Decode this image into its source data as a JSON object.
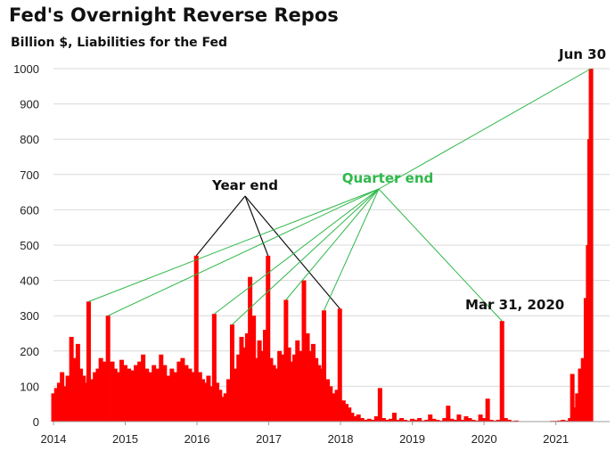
{
  "chart_data": {
    "type": "bar",
    "title": "Fed's Overnight  Reverse Repos",
    "subtitle": "Billion $, Liabilities for the Fed",
    "xlabel": "",
    "ylabel": "",
    "ylim": [
      0,
      1000
    ],
    "xlim": [
      2014.0,
      2021.75
    ],
    "yticks": [
      0,
      100,
      200,
      300,
      400,
      500,
      600,
      700,
      800,
      900,
      1000
    ],
    "xticks": [
      2014,
      2015,
      2016,
      2017,
      2018,
      2019,
      2020,
      2021
    ],
    "grid": true,
    "bar_color": "#ff0000",
    "annotation_colors": {
      "year_end": "#111111",
      "quarter_end": "#2fb84a"
    },
    "series": [
      {
        "values": [
          [
            2014.0,
            80
          ],
          [
            2014.04,
            95
          ],
          [
            2014.08,
            110
          ],
          [
            2014.12,
            140
          ],
          [
            2014.16,
            100
          ],
          [
            2014.2,
            130
          ],
          [
            2014.25,
            240
          ],
          [
            2014.3,
            180
          ],
          [
            2014.34,
            220
          ],
          [
            2014.38,
            150
          ],
          [
            2014.42,
            130
          ],
          [
            2014.46,
            110
          ],
          [
            2014.49,
            340
          ],
          [
            2014.54,
            120
          ],
          [
            2014.58,
            140
          ],
          [
            2014.62,
            150
          ],
          [
            2014.66,
            180
          ],
          [
            2014.7,
            170
          ],
          [
            2014.74,
            160
          ],
          [
            2014.76,
            300
          ],
          [
            2014.82,
            170
          ],
          [
            2014.86,
            150
          ],
          [
            2014.9,
            140
          ],
          [
            2014.95,
            175
          ],
          [
            2015.0,
            160
          ],
          [
            2015.05,
            150
          ],
          [
            2015.1,
            145
          ],
          [
            2015.15,
            160
          ],
          [
            2015.2,
            170
          ],
          [
            2015.25,
            190
          ],
          [
            2015.3,
            150
          ],
          [
            2015.35,
            140
          ],
          [
            2015.4,
            160
          ],
          [
            2015.45,
            150
          ],
          [
            2015.5,
            190
          ],
          [
            2015.55,
            160
          ],
          [
            2015.6,
            130
          ],
          [
            2015.65,
            150
          ],
          [
            2015.7,
            140
          ],
          [
            2015.75,
            170
          ],
          [
            2015.8,
            180
          ],
          [
            2015.85,
            160
          ],
          [
            2015.9,
            150
          ],
          [
            2015.95,
            140
          ],
          [
            2015.99,
            470
          ],
          [
            2016.04,
            140
          ],
          [
            2016.08,
            120
          ],
          [
            2016.12,
            110
          ],
          [
            2016.16,
            130
          ],
          [
            2016.2,
            100
          ],
          [
            2016.24,
            305
          ],
          [
            2016.28,
            110
          ],
          [
            2016.32,
            90
          ],
          [
            2016.36,
            70
          ],
          [
            2016.4,
            80
          ],
          [
            2016.44,
            120
          ],
          [
            2016.49,
            275
          ],
          [
            2016.54,
            150
          ],
          [
            2016.58,
            190
          ],
          [
            2016.62,
            240
          ],
          [
            2016.66,
            210
          ],
          [
            2016.7,
            250
          ],
          [
            2016.74,
            410
          ],
          [
            2016.79,
            300
          ],
          [
            2016.83,
            180
          ],
          [
            2016.87,
            230
          ],
          [
            2016.91,
            200
          ],
          [
            2016.95,
            260
          ],
          [
            2016.99,
            470
          ],
          [
            2017.03,
            180
          ],
          [
            2017.07,
            160
          ],
          [
            2017.11,
            150
          ],
          [
            2017.15,
            200
          ],
          [
            2017.19,
            190
          ],
          [
            2017.24,
            345
          ],
          [
            2017.28,
            210
          ],
          [
            2017.32,
            170
          ],
          [
            2017.36,
            190
          ],
          [
            2017.4,
            230
          ],
          [
            2017.44,
            200
          ],
          [
            2017.49,
            400
          ],
          [
            2017.54,
            250
          ],
          [
            2017.58,
            200
          ],
          [
            2017.62,
            220
          ],
          [
            2017.66,
            180
          ],
          [
            2017.7,
            160
          ],
          [
            2017.74,
            150
          ],
          [
            2017.77,
            315
          ],
          [
            2017.82,
            120
          ],
          [
            2017.86,
            100
          ],
          [
            2017.9,
            80
          ],
          [
            2017.95,
            90
          ],
          [
            2017.99,
            320
          ],
          [
            2018.04,
            60
          ],
          [
            2018.08,
            50
          ],
          [
            2018.12,
            40
          ],
          [
            2018.16,
            25
          ],
          [
            2018.2,
            15
          ],
          [
            2018.25,
            20
          ],
          [
            2018.3,
            10
          ],
          [
            2018.35,
            5
          ],
          [
            2018.4,
            8
          ],
          [
            2018.45,
            5
          ],
          [
            2018.5,
            15
          ],
          [
            2018.55,
            95
          ],
          [
            2018.6,
            10
          ],
          [
            2018.65,
            5
          ],
          [
            2018.7,
            8
          ],
          [
            2018.75,
            25
          ],
          [
            2018.8,
            5
          ],
          [
            2018.85,
            10
          ],
          [
            2018.9,
            5
          ],
          [
            2018.95,
            3
          ],
          [
            2019.0,
            8
          ],
          [
            2019.05,
            5
          ],
          [
            2019.1,
            10
          ],
          [
            2019.15,
            3
          ],
          [
            2019.2,
            5
          ],
          [
            2019.25,
            20
          ],
          [
            2019.3,
            8
          ],
          [
            2019.35,
            5
          ],
          [
            2019.4,
            3
          ],
          [
            2019.45,
            10
          ],
          [
            2019.5,
            45
          ],
          [
            2019.55,
            8
          ],
          [
            2019.6,
            5
          ],
          [
            2019.65,
            20
          ],
          [
            2019.7,
            5
          ],
          [
            2019.75,
            15
          ],
          [
            2019.8,
            10
          ],
          [
            2019.85,
            5
          ],
          [
            2019.9,
            3
          ],
          [
            2019.95,
            20
          ],
          [
            2020.0,
            10
          ],
          [
            2020.05,
            65
          ],
          [
            2020.1,
            5
          ],
          [
            2020.15,
            3
          ],
          [
            2020.2,
            5
          ],
          [
            2020.25,
            285
          ],
          [
            2020.3,
            10
          ],
          [
            2020.35,
            5
          ],
          [
            2020.4,
            2
          ],
          [
            2020.45,
            3
          ],
          [
            2020.5,
            1
          ],
          [
            2020.55,
            1
          ],
          [
            2020.6,
            1
          ],
          [
            2020.65,
            1
          ],
          [
            2020.7,
            1
          ],
          [
            2020.75,
            1
          ],
          [
            2020.8,
            1
          ],
          [
            2020.85,
            1
          ],
          [
            2020.9,
            1
          ],
          [
            2020.95,
            2
          ],
          [
            2021.0,
            2
          ],
          [
            2021.05,
            3
          ],
          [
            2021.1,
            5
          ],
          [
            2021.15,
            3
          ],
          [
            2021.2,
            10
          ],
          [
            2021.23,
            135
          ],
          [
            2021.26,
            40
          ],
          [
            2021.3,
            80
          ],
          [
            2021.34,
            150
          ],
          [
            2021.38,
            180
          ],
          [
            2021.42,
            350
          ],
          [
            2021.45,
            500
          ],
          [
            2021.47,
            800
          ],
          [
            2021.49,
            1000
          ]
        ]
      }
    ],
    "annotations": [
      {
        "text": "Year end",
        "style": "black",
        "points_to": [
          [
            2015.99,
            470
          ],
          [
            2016.99,
            470
          ],
          [
            2017.99,
            320
          ]
        ]
      },
      {
        "text": "Quarter end",
        "style": "green",
        "points_to": [
          [
            2014.49,
            340
          ],
          [
            2014.76,
            300
          ],
          [
            2016.24,
            305
          ],
          [
            2016.49,
            275
          ],
          [
            2017.24,
            345
          ],
          [
            2017.77,
            315
          ],
          [
            2020.25,
            285
          ],
          [
            2021.49,
            1000
          ]
        ]
      },
      {
        "text": "Mar 31, 2020",
        "style": "black"
      },
      {
        "text": "Jun 30",
        "style": "black"
      }
    ]
  }
}
